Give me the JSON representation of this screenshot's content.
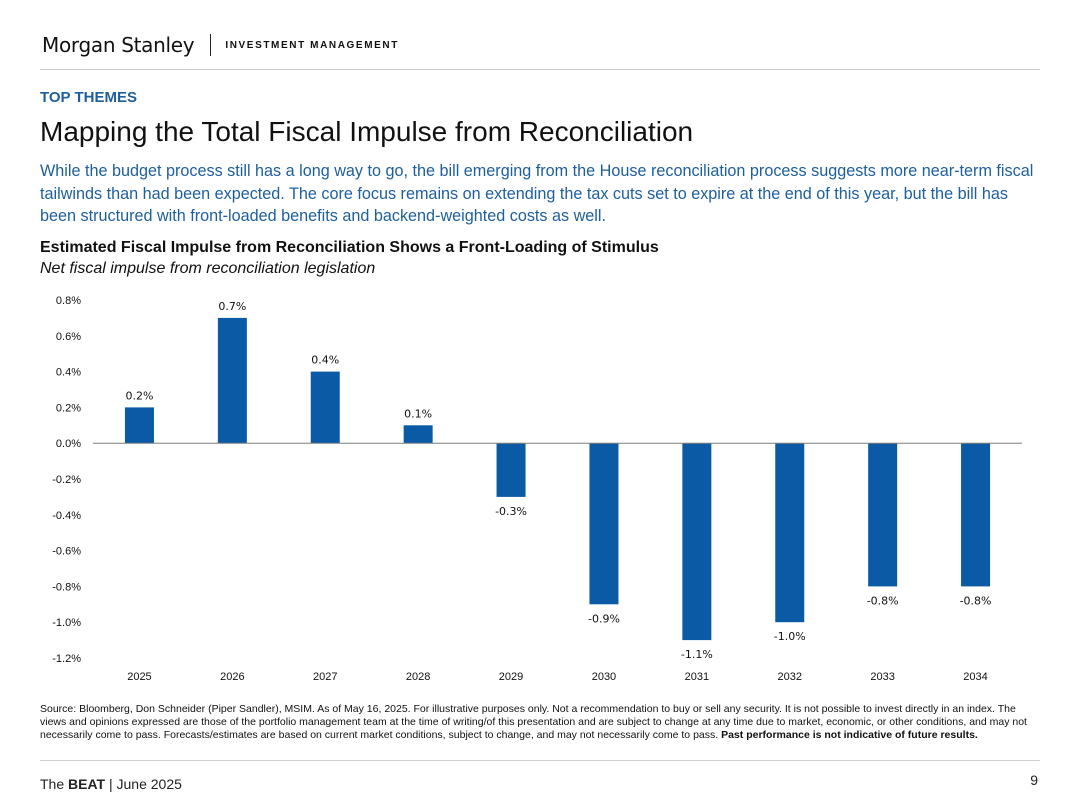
{
  "header": {
    "logo": "Morgan Stanley",
    "division": "INVESTMENT MANAGEMENT"
  },
  "eyebrow": "TOP THEMES",
  "title": "Mapping the Total Fiscal Impulse from Reconciliation",
  "subtitle": "While the budget process still has a long way to go, the bill emerging from the House reconciliation process suggests more near-term fiscal tailwinds than had been expected. The core focus remains on extending the tax cuts set to expire at the end of this year, but the bill has been structured with front-loaded benefits and backend-weighted costs as well.",
  "colors": {
    "accent": "#1d5f9e",
    "bar": "#0b5aa6"
  },
  "chart_data": {
    "type": "bar",
    "title": "Estimated Fiscal Impulse from Reconciliation Shows a Front-Loading of Stimulus",
    "subtitle": "Net fiscal impulse from reconciliation legislation",
    "categories": [
      "2025",
      "2026",
      "2027",
      "2028",
      "2029",
      "2030",
      "2031",
      "2032",
      "2033",
      "2034"
    ],
    "values": [
      0.2,
      0.7,
      0.4,
      0.1,
      -0.3,
      -0.9,
      -1.1,
      -1.0,
      -0.8,
      -0.8
    ],
    "data_labels": [
      "0.2%",
      "0.7%",
      "0.4%",
      "0.1%",
      "-0.3%",
      "-0.9%",
      "-1.1%",
      "-1.0%",
      "-0.8%",
      "-0.8%"
    ],
    "yticks": [
      0.8,
      0.6,
      0.4,
      0.2,
      0.0,
      -0.2,
      -0.4,
      -0.6,
      -0.8,
      -1.0,
      -1.2
    ],
    "ytick_labels": [
      "0.8%",
      "0.6%",
      "0.4%",
      "0.2%",
      "0.0%",
      "-0.2%",
      "-0.4%",
      "-0.6%",
      "-0.8%",
      "-1.0%",
      "-1.2%"
    ],
    "ylim": [
      -1.2,
      0.8
    ],
    "xlabel": "",
    "ylabel": "",
    "grid": false,
    "legend": "none"
  },
  "footnote": {
    "text": "Source: Bloomberg, Don Schneider (Piper Sandler), MSIM. As of May 16, 2025. For illustrative purposes only. Not a recommendation to buy or sell any security. It is not possible to invest directly in an index. The views and opinions expressed are those of the portfolio management team at the time of writing/of this presentation and are subject to change at any time due to market, economic, or other conditions, and may not necessarily come to pass.  Forecasts/estimates are based on current market conditions, subject to change, and may not necessarily come to pass. ",
    "bold": "Past performance is not indicative of future results."
  },
  "footer": {
    "prefix": "The ",
    "brand": "BEAT",
    "suffix": " | June 2025",
    "page_number": "9"
  }
}
